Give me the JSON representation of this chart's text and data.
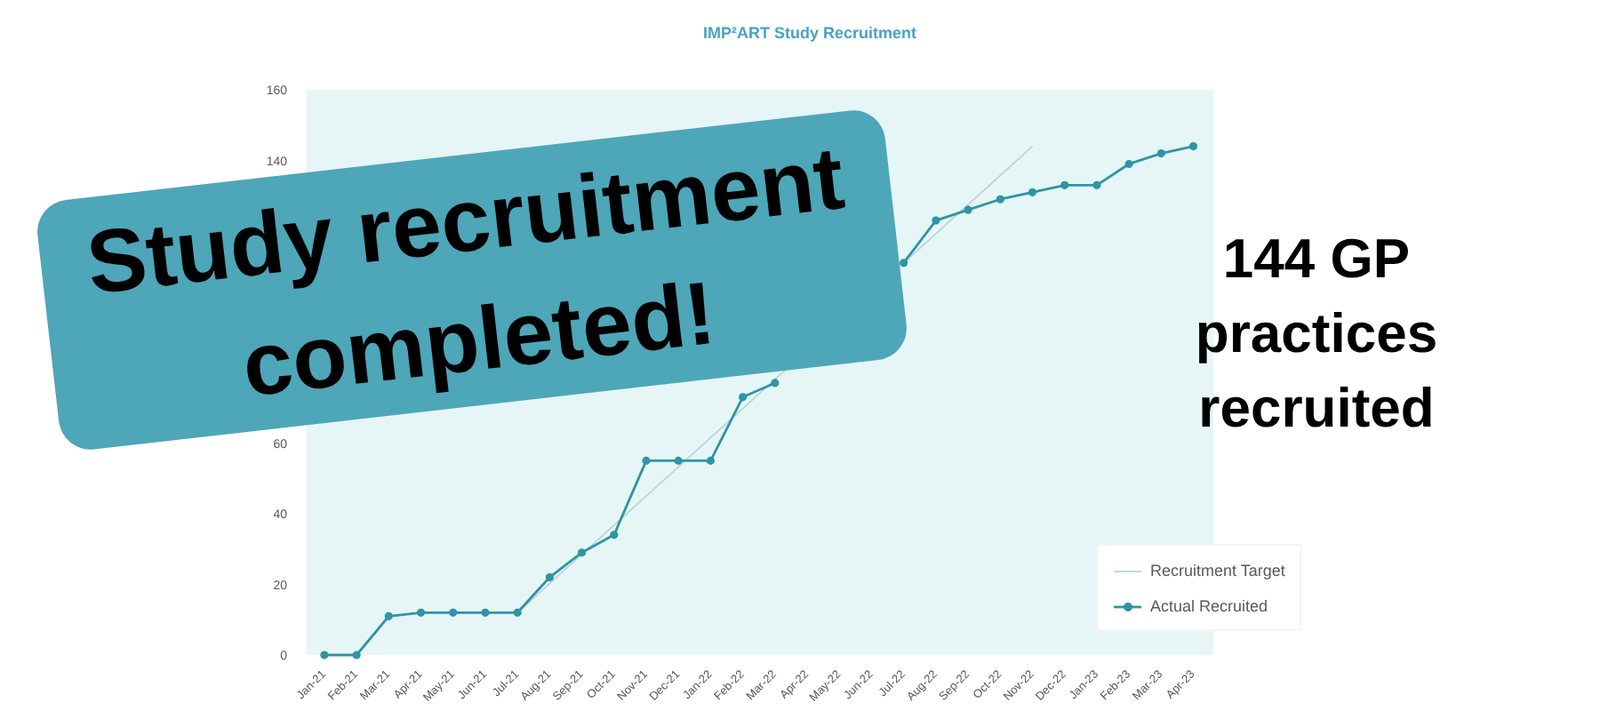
{
  "chart_data": {
    "type": "line",
    "title": "IMP²ART Study Recruitment",
    "categories": [
      "Jan-21",
      "Feb-21",
      "Mar-21",
      "Apr-21",
      "May-21",
      "Jun-21",
      "Jul-21",
      "Aug-21",
      "Sep-21",
      "Oct-21",
      "Nov-21",
      "Dec-21",
      "Jan-22",
      "Feb-22",
      "Mar-22",
      "Apr-22",
      "May-22",
      "Jun-22",
      "Jul-22",
      "Aug-22",
      "Sep-22",
      "Oct-22",
      "Nov-22",
      "Dec-22",
      "Jan-23",
      "Feb-23",
      "Mar-23",
      "Apr-23"
    ],
    "series": [
      {
        "name": "Recruitment Target",
        "color": "#bcd3d7",
        "marker": "none",
        "x": [
          "Jul-21",
          "Nov-22"
        ],
        "values": [
          12,
          144
        ]
      },
      {
        "name": "Actual Recruited",
        "color": "#2f94a6",
        "marker": "circle",
        "values": [
          0,
          0,
          11,
          12,
          12,
          12,
          12,
          22,
          29,
          34,
          55,
          55,
          55,
          73,
          77,
          null,
          null,
          null,
          111,
          123,
          126,
          129,
          131,
          133,
          133,
          139,
          142,
          144
        ]
      }
    ],
    "ylim": [
      0,
      160
    ],
    "yticks": [
      0,
      20,
      40,
      60,
      140,
      160
    ],
    "grid": false,
    "legend": "bottom right",
    "annotations": [
      "Study recruitment completed!",
      "144 GP practices recruited"
    ]
  }
}
